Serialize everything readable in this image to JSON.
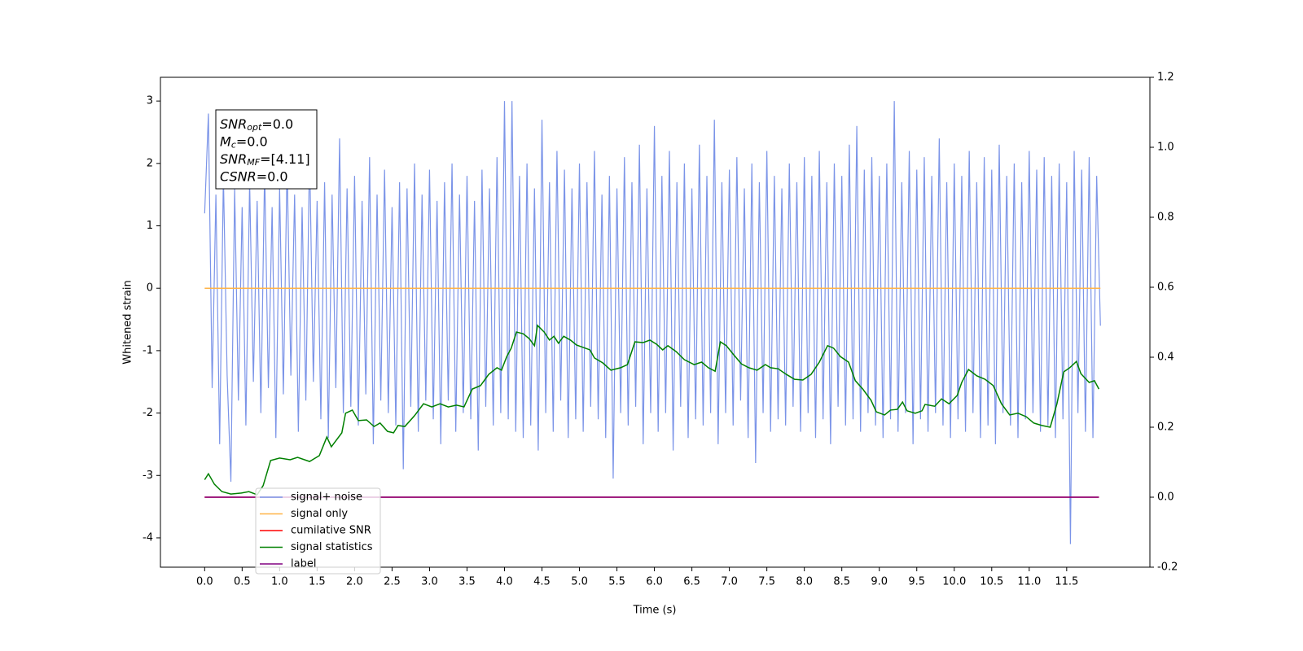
{
  "chart_data": {
    "type": "line",
    "xlabel": "Time (s)",
    "ylabel": "Whitened strain",
    "xlim": [
      -0.59,
      12.61
    ],
    "ylim": [
      -4.47,
      3.38
    ],
    "y2lim": [
      -0.2,
      1.2
    ],
    "xticks": [
      {
        "value": 0,
        "label": "0.0"
      },
      0.5,
      {
        "value": 1,
        "label": "1.0"
      },
      1.5,
      {
        "value": 2,
        "label": "2.0"
      },
      2.5,
      {
        "value": 3,
        "label": "3.0"
      },
      3.5,
      {
        "value": 4,
        "label": "4.0"
      },
      4.5,
      {
        "value": 5,
        "label": "5.0"
      },
      5.5,
      {
        "value": 6,
        "label": "6.0"
      },
      6.5,
      {
        "value": 7,
        "label": "7.0"
      },
      7.5,
      {
        "value": 8,
        "label": "8.0"
      },
      8.5,
      {
        "value": 9,
        "label": "9.0"
      },
      9.5,
      {
        "value": 10,
        "label": "10.0"
      },
      10.5,
      {
        "value": 11,
        "label": "11.0"
      },
      11.5
    ],
    "yticks": [
      -4,
      -3,
      -2,
      -1,
      0,
      1,
      2,
      3
    ],
    "y2ticks": [
      -0.2,
      {
        "value": 0,
        "label": "0.0"
      },
      0.2,
      0.4,
      0.6,
      0.8,
      {
        "value": 1,
        "label": "1.0"
      },
      1.2
    ],
    "legend_loc": "lower left",
    "annotation": [
      {
        "symbol": "SNR",
        "subscript": "opt",
        "value": "=0.0"
      },
      {
        "symbol": "M",
        "subscript": "c",
        "value": "=0.0"
      },
      {
        "symbol": "SNR",
        "subscript": "MF",
        "value": "=[4.11]"
      },
      {
        "symbol": "CSNR",
        "value": "=0.0"
      }
    ],
    "series": [
      {
        "name": "signal+ noise",
        "color": "#7b94e8",
        "x": [
          0,
          0.05,
          0.1,
          0.15,
          0.2,
          0.25,
          0.3,
          0.35,
          0.4,
          0.45,
          0.5,
          0.55,
          0.6,
          0.65,
          0.7,
          0.75,
          0.8,
          0.85,
          0.9,
          0.95,
          1,
          1.05,
          1.1,
          1.15,
          1.2,
          1.25,
          1.3,
          1.35,
          1.4,
          1.45,
          1.5,
          1.55,
          1.6,
          1.65,
          1.7,
          1.75,
          1.8,
          1.85,
          1.9,
          1.95,
          2,
          2.05,
          2.1,
          2.15,
          2.2,
          2.25,
          2.3,
          2.35,
          2.4,
          2.45,
          2.5,
          2.55,
          2.6,
          2.65,
          2.7,
          2.75,
          2.8,
          2.85,
          2.9,
          2.95,
          3,
          3.05,
          3.1,
          3.15,
          3.2,
          3.25,
          3.3,
          3.35,
          3.4,
          3.45,
          3.5,
          3.55,
          3.6,
          3.65,
          3.7,
          3.75,
          3.8,
          3.85,
          3.9,
          3.95,
          4,
          4.05,
          4.1,
          4.15,
          4.2,
          4.25,
          4.3,
          4.35,
          4.4,
          4.45,
          4.5,
          4.55,
          4.6,
          4.65,
          4.7,
          4.75,
          4.8,
          4.85,
          4.9,
          4.95,
          5,
          5.05,
          5.1,
          5.15,
          5.2,
          5.25,
          5.3,
          5.35,
          5.4,
          5.45,
          5.5,
          5.55,
          5.6,
          5.65,
          5.7,
          5.75,
          5.8,
          5.85,
          5.9,
          5.95,
          6,
          6.05,
          6.1,
          6.15,
          6.2,
          6.25,
          6.3,
          6.35,
          6.4,
          6.45,
          6.5,
          6.55,
          6.6,
          6.65,
          6.7,
          6.75,
          6.8,
          6.85,
          6.9,
          6.95,
          7,
          7.05,
          7.1,
          7.15,
          7.2,
          7.25,
          7.3,
          7.35,
          7.4,
          7.45,
          7.5,
          7.55,
          7.6,
          7.65,
          7.7,
          7.75,
          7.8,
          7.85,
          7.9,
          7.95,
          8,
          8.05,
          8.1,
          8.15,
          8.2,
          8.25,
          8.3,
          8.35,
          8.4,
          8.45,
          8.5,
          8.55,
          8.6,
          8.65,
          8.7,
          8.75,
          8.8,
          8.85,
          8.9,
          8.95,
          9,
          9.05,
          9.1,
          9.15,
          9.2,
          9.25,
          9.3,
          9.35,
          9.4,
          9.45,
          9.5,
          9.55,
          9.6,
          9.65,
          9.7,
          9.75,
          9.8,
          9.85,
          9.9,
          9.95,
          10,
          10.05,
          10.1,
          10.15,
          10.2,
          10.25,
          10.3,
          10.35,
          10.4,
          10.45,
          10.5,
          10.55,
          10.6,
          10.65,
          10.7,
          10.75,
          10.8,
          10.85,
          10.9,
          10.95,
          11,
          11.05,
          11.1,
          11.15,
          11.2,
          11.25,
          11.3,
          11.35,
          11.4,
          11.45,
          11.5,
          11.55,
          11.6,
          11.65,
          11.7,
          11.75,
          11.8,
          11.85,
          11.9,
          11.95
        ],
        "values": [
          1.2,
          2.8,
          -1.6,
          1.5,
          -2.5,
          1.8,
          -1.4,
          -3.1,
          1.6,
          -1.8,
          1.3,
          -2.2,
          1.7,
          -1.5,
          1.4,
          -2.0,
          1.9,
          -1.6,
          1.3,
          -2.4,
          1.6,
          -1.7,
          2.0,
          -1.4,
          1.5,
          -2.3,
          1.3,
          -1.8,
          2.2,
          -1.5,
          1.4,
          -2.1,
          1.7,
          -2.4,
          1.5,
          -1.6,
          2.4,
          -2.0,
          1.6,
          -1.9,
          1.8,
          -2.2,
          1.4,
          -1.7,
          2.1,
          -2.5,
          1.5,
          -1.8,
          1.9,
          -2.0,
          1.3,
          -2.2,
          1.7,
          -2.9,
          1.6,
          -1.9,
          2.0,
          -2.3,
          1.5,
          -1.8,
          1.9,
          -2.1,
          1.4,
          -2.5,
          1.7,
          -1.8,
          2.0,
          -2.3,
          1.5,
          -2.0,
          1.8,
          -2.1,
          1.4,
          -2.6,
          1.9,
          -1.9,
          1.6,
          -2.2,
          2.1,
          -2.0,
          3.0,
          -2.1,
          3.0,
          -2.3,
          1.8,
          -2.4,
          2.0,
          -2.2,
          1.6,
          -2.6,
          2.7,
          -2.0,
          1.7,
          -2.3,
          2.2,
          -1.8,
          1.9,
          -2.4,
          1.6,
          -2.1,
          2.0,
          -2.3,
          1.7,
          -1.9,
          2.2,
          -2.1,
          1.5,
          -2.4,
          1.8,
          -3.05,
          1.6,
          -2.0,
          2.1,
          -2.2,
          1.7,
          -1.9,
          2.3,
          -2.5,
          1.6,
          -2.0,
          2.6,
          -2.3,
          1.8,
          -2.0,
          2.2,
          -2.6,
          1.7,
          -1.9,
          2.0,
          -2.4,
          1.6,
          -2.1,
          2.3,
          -2.2,
          1.8,
          -2.0,
          2.7,
          -2.5,
          1.7,
          -2.0,
          1.9,
          -2.2,
          2.1,
          -1.8,
          1.6,
          -2.4,
          2.0,
          -2.8,
          1.7,
          -2.0,
          2.2,
          -2.3,
          1.8,
          -2.1,
          1.6,
          -2.2,
          2.0,
          -1.9,
          1.7,
          -2.3,
          2.1,
          -2.0,
          1.8,
          -2.4,
          2.2,
          -2.1,
          1.7,
          -2.5,
          2.0,
          -1.9,
          1.8,
          -2.2,
          2.3,
          -2.1,
          2.6,
          -2.3,
          1.9,
          -2.0,
          2.1,
          -2.2,
          1.8,
          -2.4,
          2.0,
          -2.1,
          3.0,
          -2.3,
          1.7,
          -2.0,
          2.2,
          -2.5,
          1.9,
          -2.1,
          2.1,
          -2.3,
          1.8,
          -2.0,
          2.4,
          -2.2,
          1.7,
          -2.4,
          2.0,
          -2.1,
          1.8,
          -2.3,
          2.2,
          -2.0,
          1.7,
          -2.4,
          2.1,
          -2.2,
          1.9,
          -2.5,
          2.3,
          -2.0,
          1.8,
          -2.2,
          2.0,
          -2.4,
          1.7,
          -2.1,
          2.2,
          -2.0,
          1.9,
          -2.3,
          2.1,
          -2.2,
          1.8,
          -2.4,
          2.0,
          -2.1,
          1.7,
          -4.1,
          2.2,
          -2.0,
          1.9,
          -2.3,
          2.1,
          -2.4,
          1.8,
          -0.6
        ]
      },
      {
        "name": "signal only",
        "color": "#ffb347",
        "x": [
          0,
          11.95
        ],
        "values": [
          0,
          0
        ]
      },
      {
        "name": "cumilative SNR",
        "color": "#ff0000",
        "axis": "y2",
        "x": [
          0,
          11.93
        ],
        "values": [
          0,
          0
        ]
      },
      {
        "name": "signal statistics",
        "color": "#008000",
        "axis": "y2",
        "x": [
          0,
          0.05,
          0.13,
          0.23,
          0.35,
          0.49,
          0.59,
          0.7,
          0.78,
          0.88,
          1.0,
          1.14,
          1.24,
          1.4,
          1.53,
          1.63,
          1.69,
          1.83,
          1.88,
          1.97,
          2.05,
          2.16,
          2.26,
          2.34,
          2.44,
          2.52,
          2.58,
          2.67,
          2.8,
          2.92,
          3.03,
          3.14,
          3.25,
          3.36,
          3.46,
          3.57,
          3.68,
          3.79,
          3.9,
          3.96,
          4.03,
          4.09,
          4.16,
          4.25,
          4.33,
          4.4,
          4.44,
          4.53,
          4.6,
          4.66,
          4.72,
          4.79,
          4.88,
          4.96,
          5.05,
          5.14,
          5.2,
          5.31,
          5.42,
          5.55,
          5.64,
          5.74,
          5.85,
          5.94,
          6.03,
          6.11,
          6.18,
          6.29,
          6.4,
          6.53,
          6.63,
          6.72,
          6.81,
          6.88,
          6.96,
          7.05,
          7.16,
          7.26,
          7.37,
          7.48,
          7.55,
          7.65,
          7.76,
          7.87,
          7.98,
          8.09,
          8.2,
          8.31,
          8.39,
          8.48,
          8.59,
          8.68,
          8.78,
          8.89,
          8.96,
          9.07,
          9.15,
          9.24,
          9.31,
          9.37,
          9.48,
          9.57,
          9.61,
          9.74,
          9.83,
          9.93,
          10.04,
          10.1,
          10.19,
          10.3,
          10.41,
          10.52,
          10.63,
          10.74,
          10.85,
          10.96,
          11.06,
          11.17,
          11.28,
          11.37,
          11.46,
          11.54,
          11.63,
          11.69,
          11.8,
          11.87,
          11.93
        ],
        "values": [
          0.05,
          0.067,
          0.037,
          0.016,
          0.009,
          0.012,
          0.016,
          0.007,
          0.033,
          0.105,
          0.112,
          0.107,
          0.114,
          0.102,
          0.119,
          0.172,
          0.144,
          0.184,
          0.24,
          0.249,
          0.219,
          0.221,
          0.202,
          0.212,
          0.188,
          0.184,
          0.205,
          0.202,
          0.233,
          0.267,
          0.258,
          0.267,
          0.258,
          0.263,
          0.258,
          0.309,
          0.319,
          0.351,
          0.37,
          0.363,
          0.402,
          0.426,
          0.472,
          0.467,
          0.453,
          0.433,
          0.491,
          0.472,
          0.449,
          0.46,
          0.44,
          0.46,
          0.449,
          0.435,
          0.428,
          0.421,
          0.398,
          0.384,
          0.363,
          0.37,
          0.379,
          0.444,
          0.442,
          0.449,
          0.437,
          0.421,
          0.433,
          0.416,
          0.393,
          0.379,
          0.386,
          0.37,
          0.36,
          0.444,
          0.433,
          0.409,
          0.381,
          0.37,
          0.363,
          0.379,
          0.37,
          0.367,
          0.351,
          0.337,
          0.335,
          0.351,
          0.386,
          0.433,
          0.426,
          0.402,
          0.386,
          0.333,
          0.309,
          0.277,
          0.244,
          0.235,
          0.249,
          0.251,
          0.272,
          0.247,
          0.24,
          0.247,
          0.265,
          0.26,
          0.281,
          0.267,
          0.291,
          0.328,
          0.365,
          0.347,
          0.337,
          0.319,
          0.267,
          0.235,
          0.24,
          0.23,
          0.212,
          0.205,
          0.2,
          0.267,
          0.358,
          0.37,
          0.388,
          0.353,
          0.328,
          0.333,
          0.309
        ]
      },
      {
        "name": "label",
        "color": "#800080",
        "axis": "y2",
        "x": [
          0,
          11.93
        ],
        "values": [
          0,
          0
        ]
      }
    ]
  }
}
